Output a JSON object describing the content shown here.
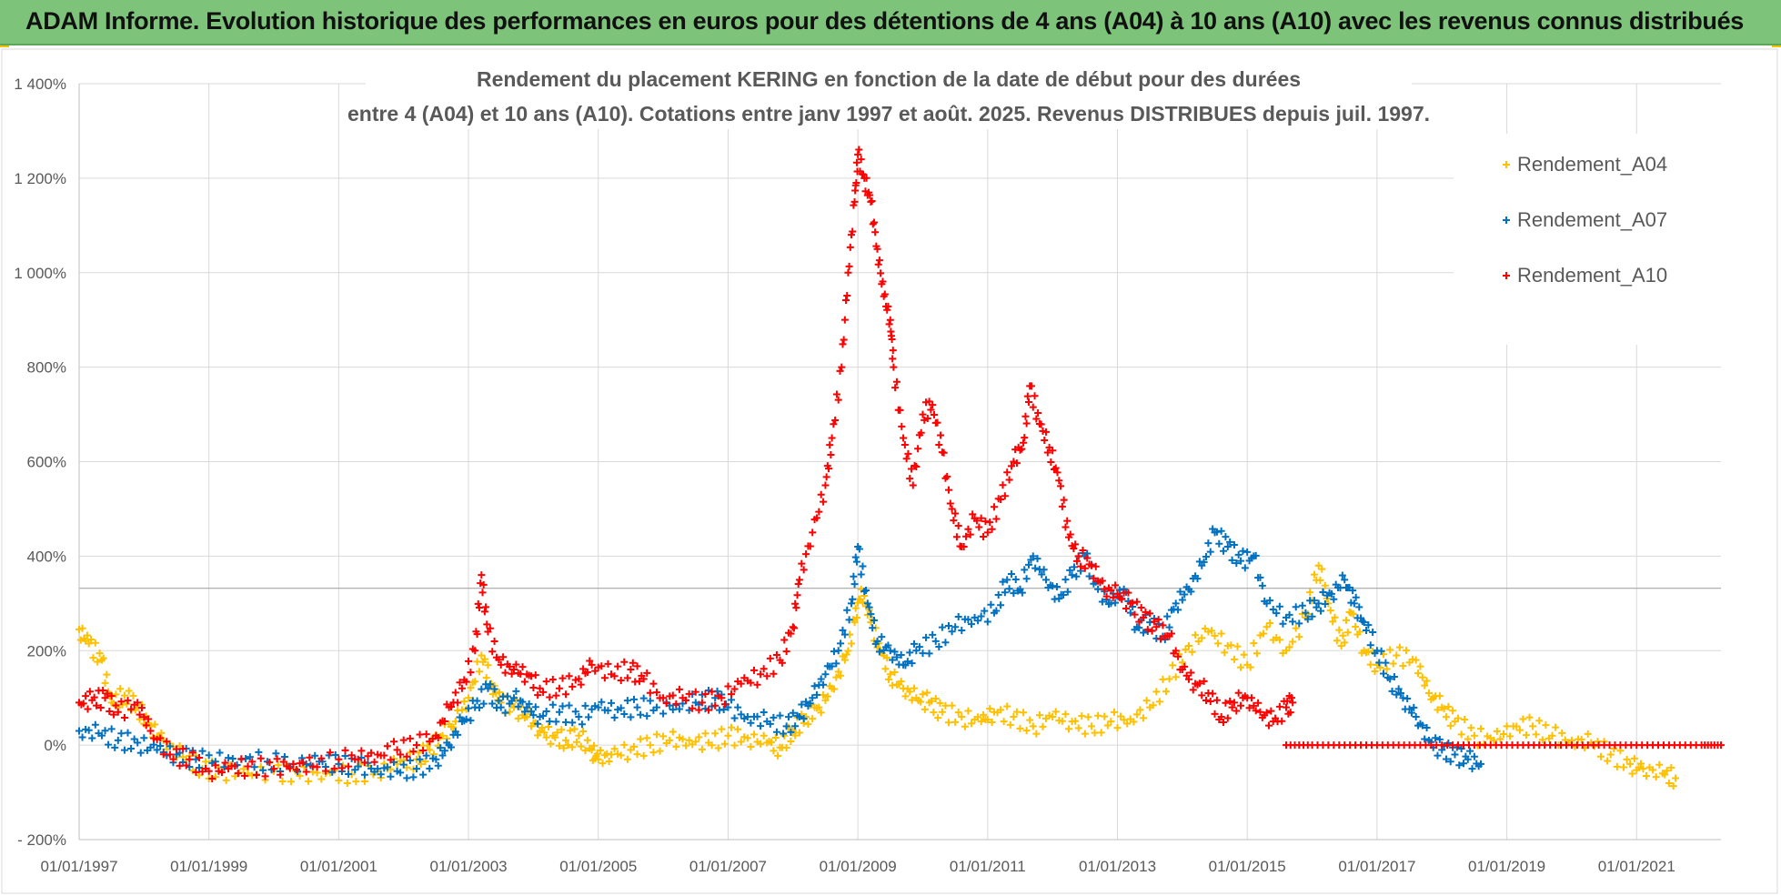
{
  "banner": {
    "title": "ADAM Informe. Evolution historique des performances en euros pour des détentions de 4 ans (A04) à 10 ans (A10) avec les revenus connus distribués"
  },
  "chart_data": {
    "type": "scatter",
    "title_line1": "Rendement du placement KERING en fonction de la date de début pour des durées",
    "title_line2": "entre 4 (A04) et 10 ans (A10).  Cotations entre janv 1997 et août. 2025. Revenus DISTRIBUES depuis juil. 1997.",
    "xlabel": "",
    "ylabel": "",
    "xlim": [
      1997.0,
      2022.3
    ],
    "ylim": [
      -200,
      1400
    ],
    "x_ticks": [
      1997,
      1999,
      2001,
      2003,
      2005,
      2007,
      2009,
      2011,
      2013,
      2015,
      2017,
      2019,
      2021
    ],
    "x_tick_labels": [
      "01/01/1997",
      "01/01/1999",
      "01/01/2001",
      "01/01/2003",
      "01/01/2005",
      "01/01/2007",
      "01/01/2009",
      "01/01/2011",
      "01/01/2013",
      "01/01/2015",
      "01/01/2017",
      "01/01/2019",
      "01/01/2021"
    ],
    "y_ticks": [
      -200,
      0,
      200,
      400,
      600,
      800,
      1000,
      1200,
      1400
    ],
    "y_tick_labels": [
      "- 200%",
      "0%",
      "200%",
      "400%",
      "600%",
      "800%",
      "1 000%",
      "1 200%",
      "1 400%"
    ],
    "grid": true,
    "legend_position": "top-right",
    "marker": "+",
    "series": [
      {
        "name": "Rendement_A04",
        "color": "#ffc000",
        "points": [
          [
            1997.0,
            245
          ],
          [
            1997.15,
            215
          ],
          [
            1997.35,
            180
          ],
          [
            1997.5,
            90
          ],
          [
            1997.7,
            105
          ],
          [
            1997.9,
            80
          ],
          [
            1998.1,
            40
          ],
          [
            1998.3,
            10
          ],
          [
            1998.6,
            -25
          ],
          [
            1998.9,
            -50
          ],
          [
            1999.2,
            -55
          ],
          [
            1999.6,
            -60
          ],
          [
            2000.0,
            -55
          ],
          [
            2000.4,
            -65
          ],
          [
            2000.8,
            -60
          ],
          [
            2001.2,
            -62
          ],
          [
            2001.6,
            -55
          ],
          [
            2001.9,
            -40
          ],
          [
            2002.2,
            -30
          ],
          [
            2002.4,
            -10
          ],
          [
            2002.6,
            20
          ],
          [
            2002.8,
            50
          ],
          [
            2003.0,
            100
          ],
          [
            2003.2,
            190
          ],
          [
            2003.35,
            130
          ],
          [
            2003.5,
            90
          ],
          [
            2003.7,
            80
          ],
          [
            2003.9,
            60
          ],
          [
            2004.1,
            30
          ],
          [
            2004.3,
            20
          ],
          [
            2004.5,
            10
          ],
          [
            2004.7,
            20
          ],
          [
            2004.9,
            -10
          ],
          [
            2005.0,
            -30
          ],
          [
            2005.2,
            -20
          ],
          [
            2005.5,
            -10
          ],
          [
            2005.8,
            0
          ],
          [
            2006.1,
            10
          ],
          [
            2006.4,
            10
          ],
          [
            2006.7,
            5
          ],
          [
            2007.0,
            20
          ],
          [
            2007.3,
            15
          ],
          [
            2007.6,
            5
          ],
          [
            2007.8,
            -5
          ],
          [
            2008.0,
            30
          ],
          [
            2008.2,
            60
          ],
          [
            2008.4,
            80
          ],
          [
            2008.6,
            120
          ],
          [
            2008.8,
            180
          ],
          [
            2008.95,
            260
          ],
          [
            2009.05,
            330
          ],
          [
            2009.2,
            260
          ],
          [
            2009.35,
            200
          ],
          [
            2009.5,
            150
          ],
          [
            2009.7,
            120
          ],
          [
            2009.9,
            100
          ],
          [
            2010.1,
            90
          ],
          [
            2010.3,
            70
          ],
          [
            2010.6,
            60
          ],
          [
            2010.9,
            50
          ],
          [
            2011.1,
            70
          ],
          [
            2011.4,
            60
          ],
          [
            2011.7,
            40
          ],
          [
            2012.0,
            60
          ],
          [
            2012.3,
            50
          ],
          [
            2012.6,
            40
          ],
          [
            2012.9,
            50
          ],
          [
            2013.2,
            55
          ],
          [
            2013.5,
            80
          ],
          [
            2013.8,
            140
          ],
          [
            2014.1,
            210
          ],
          [
            2014.4,
            240
          ],
          [
            2014.7,
            210
          ],
          [
            2015.0,
            170
          ],
          [
            2015.3,
            250
          ],
          [
            2015.6,
            200
          ],
          [
            2015.9,
            270
          ],
          [
            2016.1,
            380
          ],
          [
            2016.25,
            300
          ],
          [
            2016.45,
            210
          ],
          [
            2016.6,
            280
          ],
          [
            2016.8,
            200
          ],
          [
            2017.0,
            170
          ],
          [
            2017.3,
            190
          ],
          [
            2017.6,
            180
          ],
          [
            2017.8,
            110
          ],
          [
            2018.0,
            80
          ],
          [
            2018.2,
            50
          ],
          [
            2018.5,
            20
          ],
          [
            2018.8,
            10
          ],
          [
            2019.1,
            40
          ],
          [
            2019.4,
            40
          ],
          [
            2019.7,
            20
          ],
          [
            2020.0,
            10
          ],
          [
            2020.3,
            5
          ],
          [
            2020.6,
            -20
          ],
          [
            2020.9,
            -40
          ],
          [
            2021.1,
            -50
          ],
          [
            2021.4,
            -60
          ],
          [
            2021.6,
            -70
          ]
        ]
      },
      {
        "name": "Rendement_A07",
        "color": "#0070c0",
        "points": [
          [
            1997.0,
            30
          ],
          [
            1997.3,
            25
          ],
          [
            1997.6,
            10
          ],
          [
            1997.9,
            5
          ],
          [
            1998.2,
            -10
          ],
          [
            1998.5,
            -20
          ],
          [
            1998.8,
            -30
          ],
          [
            1999.1,
            -35
          ],
          [
            1999.5,
            -30
          ],
          [
            1999.9,
            -35
          ],
          [
            2000.3,
            -40
          ],
          [
            2000.7,
            -35
          ],
          [
            2001.0,
            -40
          ],
          [
            2001.3,
            -45
          ],
          [
            2001.6,
            -50
          ],
          [
            2001.9,
            -55
          ],
          [
            2002.2,
            -50
          ],
          [
            2002.5,
            -30
          ],
          [
            2002.7,
            0
          ],
          [
            2002.9,
            50
          ],
          [
            2003.1,
            80
          ],
          [
            2003.3,
            120
          ],
          [
            2003.5,
            80
          ],
          [
            2003.7,
            100
          ],
          [
            2003.9,
            80
          ],
          [
            2004.1,
            60
          ],
          [
            2004.4,
            70
          ],
          [
            2004.7,
            60
          ],
          [
            2005.0,
            80
          ],
          [
            2005.3,
            75
          ],
          [
            2005.6,
            80
          ],
          [
            2005.9,
            80
          ],
          [
            2006.2,
            85
          ],
          [
            2006.5,
            90
          ],
          [
            2006.8,
            100
          ],
          [
            2007.0,
            80
          ],
          [
            2007.3,
            60
          ],
          [
            2007.6,
            50
          ],
          [
            2007.9,
            40
          ],
          [
            2008.1,
            60
          ],
          [
            2008.3,
            100
          ],
          [
            2008.5,
            150
          ],
          [
            2008.7,
            200
          ],
          [
            2008.9,
            300
          ],
          [
            2009.0,
            420
          ],
          [
            2009.15,
            300
          ],
          [
            2009.3,
            220
          ],
          [
            2009.5,
            200
          ],
          [
            2009.7,
            170
          ],
          [
            2009.9,
            200
          ],
          [
            2010.2,
            220
          ],
          [
            2010.5,
            250
          ],
          [
            2010.8,
            270
          ],
          [
            2011.1,
            280
          ],
          [
            2011.3,
            350
          ],
          [
            2011.5,
            330
          ],
          [
            2011.7,
            400
          ],
          [
            2011.9,
            350
          ],
          [
            2012.1,
            310
          ],
          [
            2012.3,
            360
          ],
          [
            2012.5,
            400
          ],
          [
            2012.7,
            330
          ],
          [
            2012.9,
            300
          ],
          [
            2013.1,
            330
          ],
          [
            2013.3,
            250
          ],
          [
            2013.5,
            260
          ],
          [
            2013.7,
            230
          ],
          [
            2013.9,
            300
          ],
          [
            2014.1,
            330
          ],
          [
            2014.3,
            380
          ],
          [
            2014.5,
            450
          ],
          [
            2014.7,
            420
          ],
          [
            2014.9,
            390
          ],
          [
            2015.1,
            400
          ],
          [
            2015.3,
            300
          ],
          [
            2015.6,
            270
          ],
          [
            2015.9,
            280
          ],
          [
            2016.1,
            300
          ],
          [
            2016.3,
            320
          ],
          [
            2016.5,
            350
          ],
          [
            2016.65,
            300
          ],
          [
            2016.8,
            260
          ],
          [
            2017.0,
            200
          ],
          [
            2017.2,
            140
          ],
          [
            2017.4,
            100
          ],
          [
            2017.6,
            60
          ],
          [
            2017.8,
            10
          ],
          [
            2018.0,
            -10
          ],
          [
            2018.2,
            -20
          ],
          [
            2018.4,
            -30
          ],
          [
            2018.6,
            -40
          ]
        ]
      },
      {
        "name": "Rendement_A10",
        "color": "#ff0000",
        "points": [
          [
            1997.0,
            90
          ],
          [
            1997.2,
            95
          ],
          [
            1997.4,
            100
          ],
          [
            1997.6,
            70
          ],
          [
            1997.9,
            90
          ],
          [
            1998.1,
            30
          ],
          [
            1998.4,
            -20
          ],
          [
            1998.7,
            -30
          ],
          [
            1999.0,
            -55
          ],
          [
            1999.3,
            -50
          ],
          [
            1999.6,
            -45
          ],
          [
            2000.0,
            -50
          ],
          [
            2000.3,
            -40
          ],
          [
            2000.6,
            -45
          ],
          [
            2001.0,
            -30
          ],
          [
            2001.3,
            -30
          ],
          [
            2001.6,
            -20
          ],
          [
            2001.9,
            -10
          ],
          [
            2002.2,
            0
          ],
          [
            2002.5,
            20
          ],
          [
            2002.7,
            80
          ],
          [
            2002.9,
            120
          ],
          [
            2003.1,
            200
          ],
          [
            2003.2,
            360
          ],
          [
            2003.3,
            240
          ],
          [
            2003.5,
            170
          ],
          [
            2003.7,
            160
          ],
          [
            2003.9,
            150
          ],
          [
            2004.1,
            120
          ],
          [
            2004.4,
            120
          ],
          [
            2004.7,
            140
          ],
          [
            2004.9,
            170
          ],
          [
            2005.2,
            150
          ],
          [
            2005.5,
            160
          ],
          [
            2005.7,
            140
          ],
          [
            2006.0,
            100
          ],
          [
            2006.3,
            100
          ],
          [
            2006.6,
            90
          ],
          [
            2006.9,
            100
          ],
          [
            2007.2,
            130
          ],
          [
            2007.5,
            150
          ],
          [
            2007.8,
            180
          ],
          [
            2008.0,
            250
          ],
          [
            2008.1,
            350
          ],
          [
            2008.3,
            450
          ],
          [
            2008.5,
            550
          ],
          [
            2008.6,
            650
          ],
          [
            2008.75,
            800
          ],
          [
            2008.85,
            1000
          ],
          [
            2008.95,
            1150
          ],
          [
            2009.0,
            1250
          ],
          [
            2009.1,
            1200
          ],
          [
            2009.2,
            1150
          ],
          [
            2009.3,
            1050
          ],
          [
            2009.4,
            950
          ],
          [
            2009.5,
            900
          ],
          [
            2009.55,
            800
          ],
          [
            2009.7,
            650
          ],
          [
            2009.85,
            550
          ],
          [
            2010.0,
            700
          ],
          [
            2010.15,
            720
          ],
          [
            2010.3,
            620
          ],
          [
            2010.45,
            500
          ],
          [
            2010.6,
            420
          ],
          [
            2010.8,
            480
          ],
          [
            2011.0,
            450
          ],
          [
            2011.2,
            520
          ],
          [
            2011.4,
            600
          ],
          [
            2011.55,
            640
          ],
          [
            2011.65,
            760
          ],
          [
            2011.8,
            680
          ],
          [
            2011.95,
            630
          ],
          [
            2012.1,
            560
          ],
          [
            2012.25,
            440
          ],
          [
            2012.4,
            400
          ],
          [
            2012.6,
            380
          ],
          [
            2012.8,
            330
          ],
          [
            2013.0,
            320
          ],
          [
            2013.2,
            300
          ],
          [
            2013.4,
            270
          ],
          [
            2013.6,
            250
          ],
          [
            2013.8,
            230
          ],
          [
            2014.0,
            160
          ],
          [
            2014.2,
            130
          ],
          [
            2014.4,
            110
          ],
          [
            2014.6,
            60
          ],
          [
            2014.8,
            90
          ],
          [
            2015.0,
            100
          ],
          [
            2015.2,
            70
          ],
          [
            2015.4,
            50
          ],
          [
            2015.6,
            80
          ],
          [
            2015.7,
            90
          ]
        ]
      },
      {
        "name": "",
        "color": "#ff0000",
        "points": [
          [
            2015.6,
            0
          ],
          [
            2016.0,
            0
          ],
          [
            2016.5,
            0
          ],
          [
            2017.0,
            0
          ],
          [
            2017.5,
            0
          ],
          [
            2018.0,
            0
          ],
          [
            2018.5,
            0
          ],
          [
            2019.0,
            0
          ],
          [
            2019.5,
            0
          ],
          [
            2020.0,
            0
          ],
          [
            2020.5,
            0
          ],
          [
            2021.0,
            0
          ],
          [
            2021.5,
            0
          ],
          [
            2022.0,
            0
          ],
          [
            2022.3,
            0
          ]
        ]
      }
    ]
  }
}
